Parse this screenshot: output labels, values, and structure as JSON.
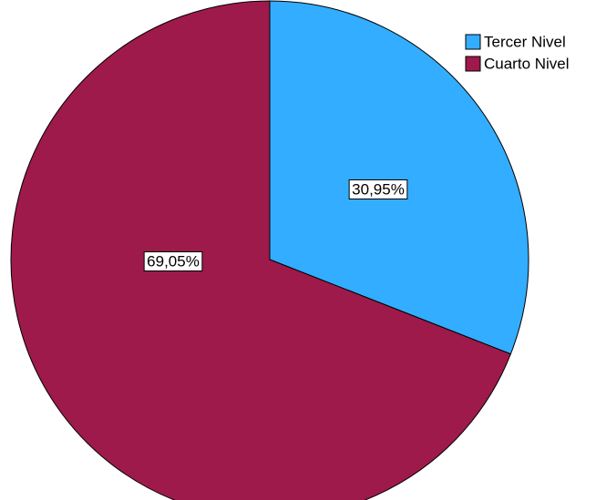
{
  "chart_data": {
    "type": "pie",
    "categories": [
      "Tercer Nivel",
      "Cuarto Nivel"
    ],
    "values": [
      30.95,
      69.05
    ],
    "value_labels": [
      "30,95%",
      "69,05%"
    ],
    "colors": [
      "#33adff",
      "#9e1a4a"
    ],
    "legend": "top-right"
  }
}
